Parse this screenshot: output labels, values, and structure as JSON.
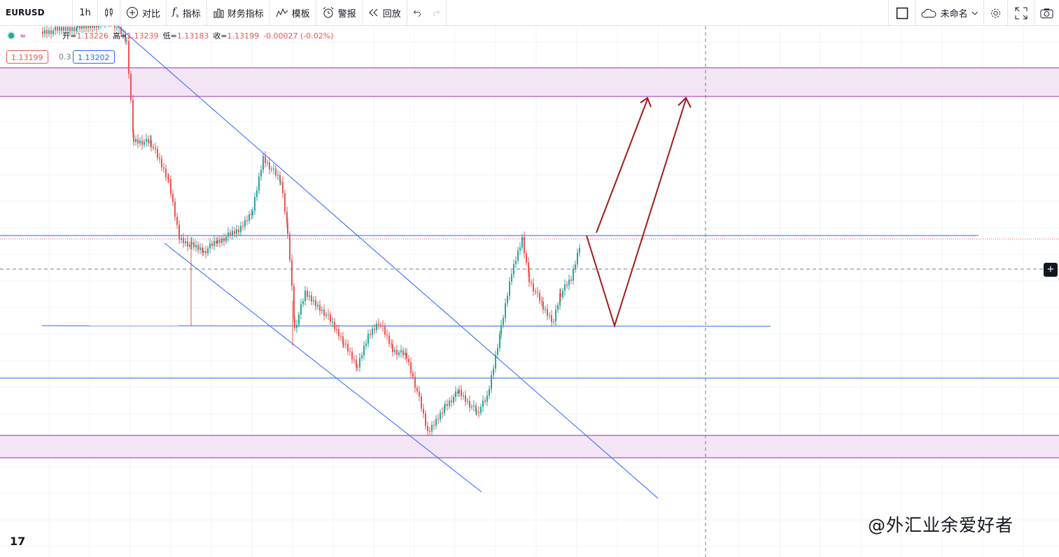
{
  "toolbar": {
    "symbol": "EURUSD",
    "interval": "1h",
    "compare_label": "对比",
    "indicators_label": "指标",
    "financials_label": "财务指标",
    "templates_label": "模板",
    "alert_label": "警报",
    "replay_label": "回放",
    "layout_name": "未命名"
  },
  "legend": {
    "open_label": "开=",
    "open": "1.13226",
    "high_label": "高=",
    "high": "1.13239",
    "low_label": "低=",
    "low": "1.13183",
    "close_label": "收=",
    "close": "1.13199",
    "change": "-0.00027 (-0.02%)"
  },
  "quote": {
    "sell": "1.13199",
    "spread": "0.3",
    "buy": "1.13202"
  },
  "watermark": "@外汇业余爱好者",
  "brand": "17",
  "colors": {
    "up": "#26a69a",
    "down": "#ef5350",
    "trendline": "#2962ff",
    "zone_fill": "#f3e5f5",
    "zone_border": "#9c27b0",
    "arrow": "#a31a1a"
  }
}
